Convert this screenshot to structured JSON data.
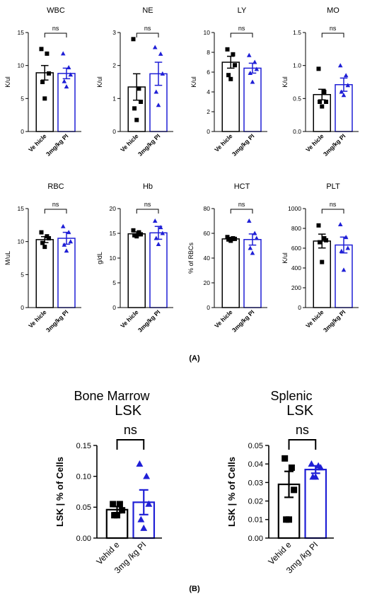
{
  "figure": {
    "panel_a_label": "(A)",
    "panel_b_label": "(B)",
    "section_titles": [
      "Bone Marrow",
      "Splenic"
    ]
  },
  "colors": {
    "vehicle": "#000000",
    "treated": "#1f1fd6"
  },
  "chart_data": [
    {
      "type": "bar",
      "title": "WBC",
      "ylabel": "K/ul",
      "categories": [
        "Ve hicle",
        "3mg/kg PI"
      ],
      "ylim": [
        0,
        15
      ],
      "yticks": [
        0,
        5,
        10,
        15
      ],
      "yticklabels": [
        "0",
        "5",
        "10",
        "15"
      ],
      "significance": "ns",
      "series": [
        {
          "values": [
            8.9,
            8.8
          ],
          "sem": [
            1.1,
            0.8
          ],
          "points": [
            [
              12.5,
              11.8,
              8.8,
              7.5,
              5.0
            ],
            [
              11.8,
              9.7,
              8.6,
              7.6,
              6.8
            ]
          ]
        }
      ]
    },
    {
      "type": "bar",
      "title": "NE",
      "ylabel": "K/ul",
      "categories": [
        "Ve hicle",
        "3mg/kg PI"
      ],
      "ylim": [
        0,
        3
      ],
      "yticks": [
        0,
        1,
        2,
        3
      ],
      "yticklabels": [
        "0",
        "1",
        "2",
        "3"
      ],
      "significance": "ns",
      "series": [
        {
          "values": [
            1.35,
            1.75
          ],
          "sem": [
            0.4,
            0.35
          ],
          "points": [
            [
              2.8,
              1.3,
              0.9,
              0.7,
              0.35
            ],
            [
              2.55,
              2.35,
              1.75,
              1.2,
              0.8
            ]
          ]
        }
      ]
    },
    {
      "type": "bar",
      "title": "LY",
      "ylabel": "K/ul",
      "categories": [
        "Ve hicle",
        "3mg/kg PI"
      ],
      "ylim": [
        0,
        10
      ],
      "yticks": [
        0,
        2,
        4,
        6,
        8,
        10
      ],
      "yticklabels": [
        "0",
        "2",
        "4",
        "6",
        "8",
        "10"
      ],
      "significance": "ns",
      "series": [
        {
          "values": [
            7.0,
            6.4
          ],
          "sem": [
            0.6,
            0.5
          ],
          "points": [
            [
              8.3,
              7.8,
              6.7,
              5.7,
              5.3
            ],
            [
              7.7,
              7.0,
              6.3,
              5.9,
              5.0
            ]
          ]
        }
      ]
    },
    {
      "type": "bar",
      "title": "MO",
      "ylabel": "K/ul",
      "categories": [
        "Ve hicle",
        "3mg/kg PI"
      ],
      "ylim": [
        0,
        1.5
      ],
      "yticks": [
        0,
        0.5,
        1.0,
        1.5
      ],
      "yticklabels": [
        "0.0",
        "0.5",
        "1.0",
        "1.5"
      ],
      "significance": "ns",
      "series": [
        {
          "values": [
            0.56,
            0.71
          ],
          "sem": [
            0.08,
            0.1
          ],
          "points": [
            [
              0.95,
              0.6,
              0.45,
              0.45,
              0.38
            ],
            [
              1.0,
              0.85,
              0.7,
              0.6,
              0.55
            ]
          ]
        }
      ]
    },
    {
      "type": "bar",
      "title": "RBC",
      "ylabel": "M/uL",
      "categories": [
        "Ve hicle",
        "3mg/kg PI"
      ],
      "ylim": [
        0,
        15
      ],
      "yticks": [
        0,
        5,
        10,
        15
      ],
      "yticklabels": [
        "0",
        "5",
        "10",
        "15"
      ],
      "significance": "ns",
      "series": [
        {
          "values": [
            10.3,
            10.5
          ],
          "sem": [
            0.45,
            0.9
          ],
          "points": [
            [
              11.4,
              10.8,
              10.5,
              9.8,
              9.2
            ],
            [
              12.3,
              11.4,
              10.0,
              9.5,
              8.6
            ]
          ]
        }
      ]
    },
    {
      "type": "bar",
      "title": "Hb",
      "ylabel": "g/dL",
      "categories": [
        "Ve hicle",
        "3mg/kg PI"
      ],
      "ylim": [
        0,
        20
      ],
      "yticks": [
        0,
        5,
        10,
        15,
        20
      ],
      "yticklabels": [
        "0",
        "5",
        "10",
        "15",
        "20"
      ],
      "significance": "ns",
      "series": [
        {
          "values": [
            14.9,
            15.1
          ],
          "sem": [
            0.4,
            1.3
          ],
          "points": [
            [
              15.6,
              15.2,
              14.8,
              14.6,
              14.4
            ],
            [
              17.5,
              16.2,
              15.0,
              14.0,
              12.8
            ]
          ]
        }
      ]
    },
    {
      "type": "bar",
      "title": "HCT",
      "ylabel": "% of RBCs",
      "categories": [
        "Ve hicle",
        "3mg/kg PI"
      ],
      "ylim": [
        0,
        80
      ],
      "yticks": [
        0,
        20,
        40,
        60,
        80
      ],
      "yticklabels": [
        "0",
        "20",
        "40",
        "60",
        "80"
      ],
      "significance": "ns",
      "series": [
        {
          "values": [
            55.5,
            55.0
          ],
          "sem": [
            1.2,
            4.5
          ],
          "points": [
            [
              57.0,
              56.0,
              55.5,
              55.0,
              54.0
            ],
            [
              70.0,
              60.0,
              56.0,
              48.0,
              44.0
            ]
          ]
        }
      ]
    },
    {
      "type": "bar",
      "title": "PLT",
      "ylabel": "K/ul",
      "categories": [
        "Ve hicle",
        "3mg/kg PI"
      ],
      "ylim": [
        0,
        1000
      ],
      "yticks": [
        0,
        200,
        400,
        600,
        800,
        1000
      ],
      "yticklabels": [
        "0",
        "200",
        "400",
        "600",
        "800",
        "1000"
      ],
      "significance": "ns",
      "series": [
        {
          "values": [
            672,
            632
          ],
          "sem": [
            70,
            80
          ],
          "points": [
            [
              830,
              700,
              680,
              660,
              460
            ],
            [
              840,
              710,
              600,
              570,
              380
            ]
          ]
        }
      ]
    },
    {
      "type": "bar",
      "title": "LSK",
      "ylabel": "LSK | % of Cells",
      "categories": [
        "Vehid e",
        "3mg /kg PI"
      ],
      "ylim": [
        0,
        0.15
      ],
      "yticks": [
        0,
        0.05,
        0.1,
        0.15
      ],
      "yticklabels": [
        "0.00",
        "0.05",
        "0.10",
        "0.15"
      ],
      "significance": "ns",
      "series": [
        {
          "values": [
            0.046,
            0.058
          ],
          "sem": [
            0.005,
            0.02
          ],
          "points": [
            [
              0.055,
              0.055,
              0.045,
              0.037,
              0.037
            ],
            [
              0.12,
              0.1,
              0.055,
              0.03,
              0.016
            ]
          ]
        }
      ]
    },
    {
      "type": "bar",
      "title": "LSK",
      "ylabel": "LSK | % of Cells",
      "categories": [
        "Vehid e",
        "3mg /kg PI"
      ],
      "ylim": [
        0,
        0.05
      ],
      "yticks": [
        0,
        0.01,
        0.02,
        0.03,
        0.04,
        0.05
      ],
      "yticklabels": [
        "0.00",
        "0.01",
        "0.02",
        "0.03",
        "0.04",
        "0.05"
      ],
      "significance": "ns",
      "series": [
        {
          "values": [
            0.029,
            0.037
          ],
          "sem": [
            0.007,
            0.002
          ],
          "points": [
            [
              0.043,
              0.038,
              0.026,
              0.01,
              0.01
            ],
            [
              0.04,
              0.039,
              0.038,
              0.033,
              0.033
            ]
          ]
        }
      ]
    }
  ]
}
